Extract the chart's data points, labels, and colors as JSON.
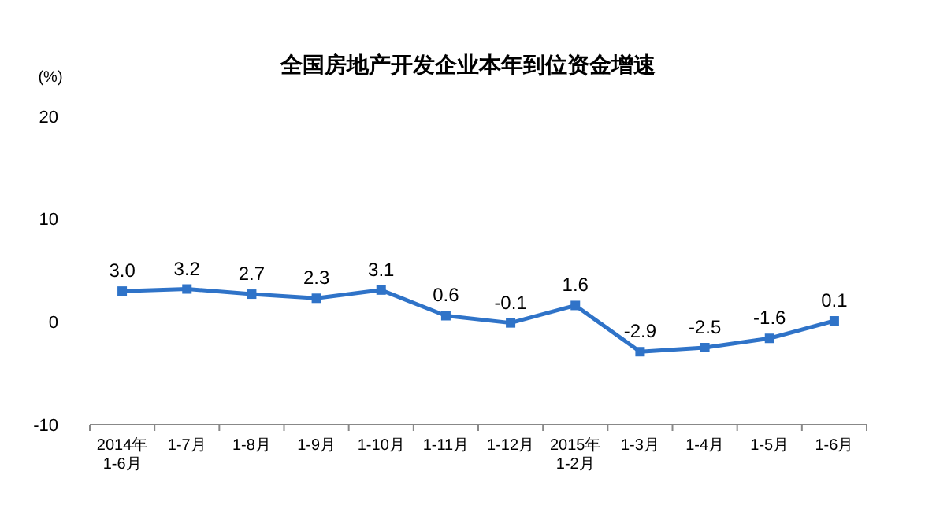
{
  "chart_data": {
    "type": "line",
    "title": "全国房地产开发企业本年到位资金增速",
    "ylabel": "(%)",
    "categories": [
      "2014年\n1-6月",
      "1-7月",
      "1-8月",
      "1-9月",
      "1-10月",
      "1-11月",
      "1-12月",
      "2015年\n1-2月",
      "1-3月",
      "1-4月",
      "1-5月",
      "1-6月"
    ],
    "series": [
      {
        "color": "#2f73c8",
        "values": [
          3.0,
          3.2,
          2.7,
          2.3,
          3.1,
          0.6,
          -0.1,
          1.6,
          -2.9,
          -2.5,
          -1.6,
          0.1
        ],
        "value_labels": [
          "3.0",
          "3.2",
          "2.7",
          "2.3",
          "3.1",
          "0.6",
          "-0.1",
          "1.6",
          "-2.9",
          "-2.5",
          "-1.6",
          "0.1"
        ]
      }
    ],
    "ylim": [
      -10,
      20
    ],
    "yticks": [
      -10,
      0,
      10,
      20
    ],
    "marker": "square",
    "grid": false
  }
}
